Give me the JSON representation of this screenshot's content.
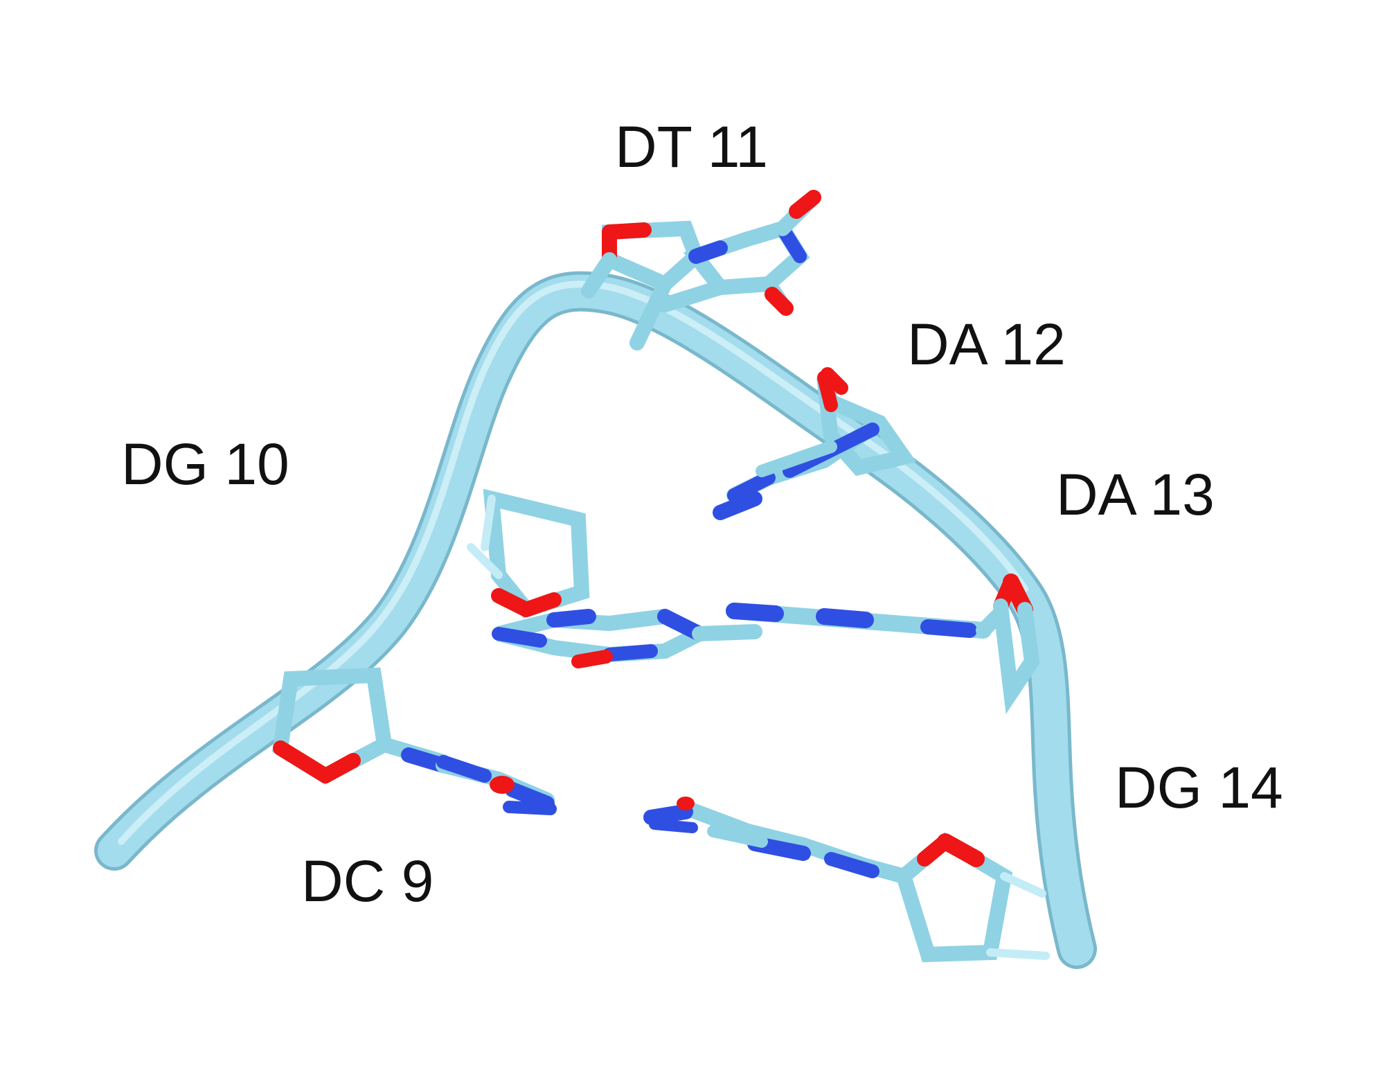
{
  "colors": {
    "backbone": "#9fdcec",
    "carbon": "#93d6e8",
    "carbon_light": "#c3ecf6",
    "nitrogen": "#2f4fe3",
    "oxygen": "#ee1616",
    "label_text": "#111111",
    "background": "#ffffff"
  },
  "residues": [
    {
      "id": "dc9",
      "label": "DC 9"
    },
    {
      "id": "dg10",
      "label": "DG 10"
    },
    {
      "id": "dt11",
      "label": "DT 11"
    },
    {
      "id": "da12",
      "label": "DA 12"
    },
    {
      "id": "da13",
      "label": "DA 13"
    },
    {
      "id": "dg14",
      "label": "DG 14"
    }
  ]
}
